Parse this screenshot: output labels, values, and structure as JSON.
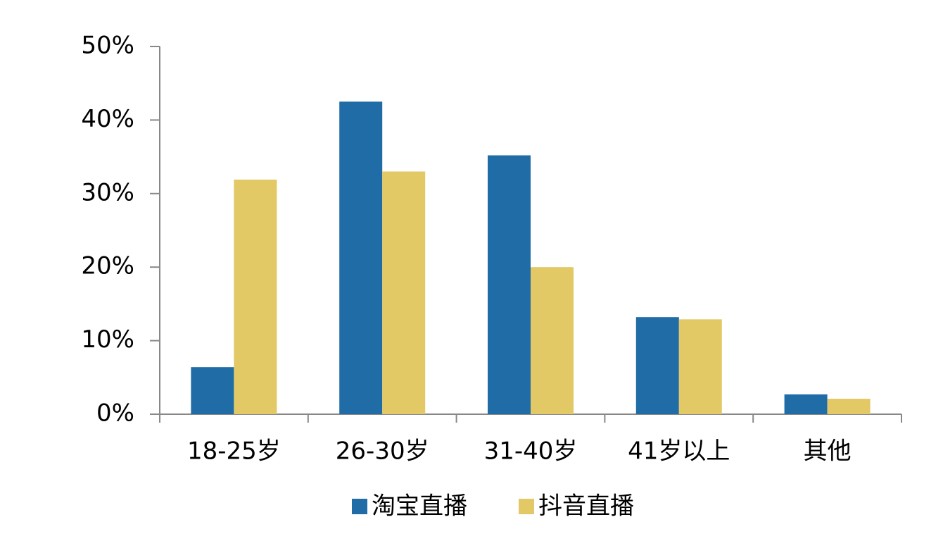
{
  "chart_data": {
    "type": "bar",
    "categories": [
      "18-25岁",
      "26-30岁",
      "31-40岁",
      "41岁以上",
      "其他"
    ],
    "series": [
      {
        "name": "淘宝直播",
        "color": "#1f6ca6",
        "values": [
          6.4,
          42.5,
          35.2,
          13.2,
          2.7
        ]
      },
      {
        "name": "抖音直播",
        "color": "#e3c866",
        "values": [
          31.9,
          33.0,
          20.0,
          12.9,
          2.1
        ]
      }
    ],
    "ylim": [
      0,
      50
    ],
    "yticks": [
      {
        "value": 0,
        "label": "0%"
      },
      {
        "value": 10,
        "label": "10%"
      },
      {
        "value": 20,
        "label": "20%"
      },
      {
        "value": 30,
        "label": "30%"
      },
      {
        "value": 40,
        "label": "40%"
      },
      {
        "value": 50,
        "label": "50%"
      }
    ],
    "grid": false,
    "legend": "bottom"
  }
}
